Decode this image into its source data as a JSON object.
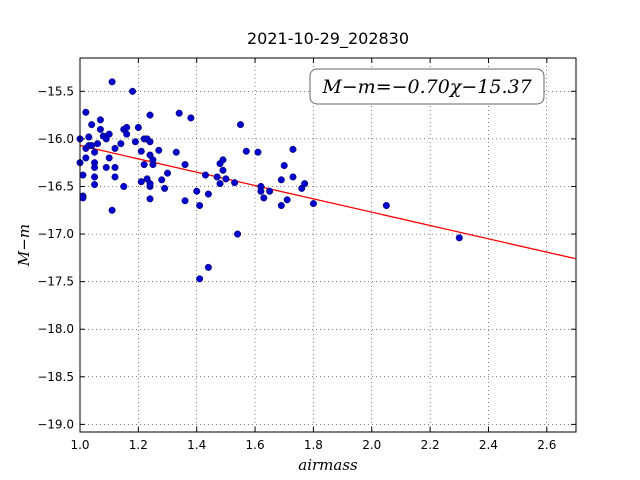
{
  "chart_data": {
    "type": "scatter",
    "title": "2021-10-29_202830",
    "xlabel": "airmass",
    "ylabel": "M−m",
    "xlim": [
      1.0,
      2.7
    ],
    "ylim": [
      -19.08,
      -15.15
    ],
    "xticks": [
      1.0,
      1.2,
      1.4,
      1.6,
      1.8,
      2.0,
      2.2,
      2.4,
      2.6
    ],
    "xtick_labels": [
      "1.0",
      "1.2",
      "1.4",
      "1.6",
      "1.8",
      "2.0",
      "2.2",
      "2.4",
      "2.6"
    ],
    "yticks": [
      -15.5,
      -16.0,
      -16.5,
      -17.0,
      -17.5,
      -18.0,
      -18.5,
      -19.0
    ],
    "ytick_labels": [
      "−15.5",
      "−16.0",
      "−16.5",
      "−17.0",
      "−17.5",
      "−18.0",
      "−18.5",
      "−19.0"
    ],
    "grid": true,
    "annotation": "M−m=−0.70χ−15.37",
    "fit": {
      "slope": -0.7,
      "intercept": -15.37,
      "color": "#ff0000"
    },
    "point_color": "#0000cc",
    "points": [
      [
        1.0,
        -16.0
      ],
      [
        1.0,
        -16.25
      ],
      [
        1.01,
        -16.6
      ],
      [
        1.01,
        -16.62
      ],
      [
        1.01,
        -16.38
      ],
      [
        1.02,
        -16.1
      ],
      [
        1.02,
        -16.2
      ],
      [
        1.02,
        -15.72
      ],
      [
        1.03,
        -15.98
      ],
      [
        1.03,
        -16.07
      ],
      [
        1.04,
        -15.85
      ],
      [
        1.04,
        -16.07
      ],
      [
        1.05,
        -16.14
      ],
      [
        1.05,
        -16.25
      ],
      [
        1.05,
        -16.3
      ],
      [
        1.05,
        -16.4
      ],
      [
        1.05,
        -16.48
      ],
      [
        1.06,
        -16.05
      ],
      [
        1.07,
        -15.9
      ],
      [
        1.07,
        -15.8
      ],
      [
        1.08,
        -15.97
      ],
      [
        1.09,
        -16.0
      ],
      [
        1.09,
        -16.3
      ],
      [
        1.1,
        -15.95
      ],
      [
        1.1,
        -16.2
      ],
      [
        1.11,
        -15.4
      ],
      [
        1.11,
        -16.75
      ],
      [
        1.12,
        -16.1
      ],
      [
        1.12,
        -16.4
      ],
      [
        1.12,
        -16.3
      ],
      [
        1.14,
        -16.05
      ],
      [
        1.15,
        -15.9
      ],
      [
        1.15,
        -16.5
      ],
      [
        1.16,
        -15.95
      ],
      [
        1.16,
        -15.88
      ],
      [
        1.18,
        -15.5
      ],
      [
        1.19,
        -16.03
      ],
      [
        1.2,
        -15.88
      ],
      [
        1.21,
        -16.13
      ],
      [
        1.21,
        -16.45
      ],
      [
        1.22,
        -16.27
      ],
      [
        1.22,
        -16.0
      ],
      [
        1.23,
        -16.0
      ],
      [
        1.23,
        -16.42
      ],
      [
        1.24,
        -16.63
      ],
      [
        1.24,
        -16.5
      ],
      [
        1.24,
        -16.47
      ],
      [
        1.24,
        -15.75
      ],
      [
        1.24,
        -16.03
      ],
      [
        1.24,
        -16.17
      ],
      [
        1.25,
        -16.27
      ],
      [
        1.25,
        -16.22
      ],
      [
        1.27,
        -16.12
      ],
      [
        1.28,
        -16.43
      ],
      [
        1.29,
        -16.52
      ],
      [
        1.3,
        -16.36
      ],
      [
        1.33,
        -16.14
      ],
      [
        1.34,
        -15.73
      ],
      [
        1.36,
        -16.27
      ],
      [
        1.36,
        -16.65
      ],
      [
        1.38,
        -15.78
      ],
      [
        1.4,
        -16.55
      ],
      [
        1.41,
        -16.7
      ],
      [
        1.41,
        -17.47
      ],
      [
        1.43,
        -16.38
      ],
      [
        1.44,
        -17.35
      ],
      [
        1.44,
        -16.58
      ],
      [
        1.47,
        -16.4
      ],
      [
        1.48,
        -16.47
      ],
      [
        1.48,
        -16.26
      ],
      [
        1.49,
        -16.33
      ],
      [
        1.49,
        -16.22
      ],
      [
        1.5,
        -16.42
      ],
      [
        1.53,
        -16.46
      ],
      [
        1.54,
        -17.0
      ],
      [
        1.55,
        -15.85
      ],
      [
        1.57,
        -16.13
      ],
      [
        1.61,
        -16.14
      ],
      [
        1.62,
        -16.5
      ],
      [
        1.62,
        -16.55
      ],
      [
        1.63,
        -16.62
      ],
      [
        1.65,
        -16.55
      ],
      [
        1.69,
        -16.43
      ],
      [
        1.69,
        -16.7
      ],
      [
        1.7,
        -16.28
      ],
      [
        1.71,
        -16.64
      ],
      [
        1.73,
        -16.11
      ],
      [
        1.73,
        -16.4
      ],
      [
        1.76,
        -16.52
      ],
      [
        1.77,
        -16.47
      ],
      [
        1.8,
        -16.68
      ],
      [
        2.05,
        -16.7
      ],
      [
        2.3,
        -17.04
      ]
    ]
  }
}
